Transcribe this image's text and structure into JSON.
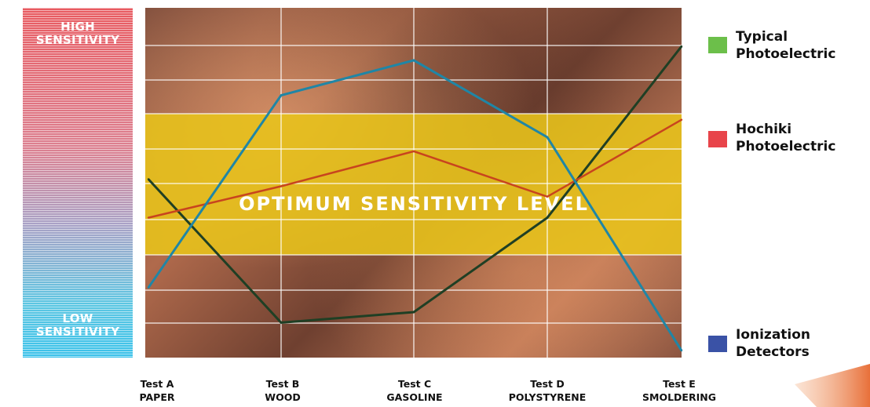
{
  "chart_data": {
    "type": "line",
    "title": "",
    "xlabel": "",
    "ylabel": "",
    "ylim": [
      0,
      10
    ],
    "grid": true,
    "legend_position": "right",
    "categories": [
      [
        "Test A",
        "PAPER"
      ],
      [
        "Test B",
        "WOOD"
      ],
      [
        "Test C",
        "GASOLINE"
      ],
      [
        "Test D",
        "POLYSTYRENE"
      ],
      [
        "Test E",
        "SMOLDERING"
      ]
    ],
    "y_axis": {
      "high_label": [
        "HIGH",
        "SENSITIVITY"
      ],
      "low_label": [
        "LOW",
        "SENSITIVITY"
      ]
    },
    "optimum_band": {
      "label": "OPTIMUM SENSITIVITY LEVEL",
      "range": [
        3,
        7
      ],
      "color": "#e8c41a"
    },
    "series": [
      {
        "name": [
          "Typical",
          "Photoelectric"
        ],
        "color": "#1f3f24",
        "legend_color": "#6cbf4a",
        "values": [
          5.1,
          1.0,
          1.3,
          4.0,
          8.9
        ]
      },
      {
        "name": [
          "Hochiki",
          "Photoelectric"
        ],
        "color": "#c8441e",
        "legend_color": "#e8444a",
        "values": [
          4.0,
          4.9,
          5.9,
          4.6,
          6.8
        ]
      },
      {
        "name": [
          "Ionization",
          "Detectors"
        ],
        "color": "#1f86a6",
        "legend_color": "#3a52a6",
        "values": [
          2.0,
          7.5,
          8.5,
          6.3,
          0.2
        ]
      }
    ]
  }
}
